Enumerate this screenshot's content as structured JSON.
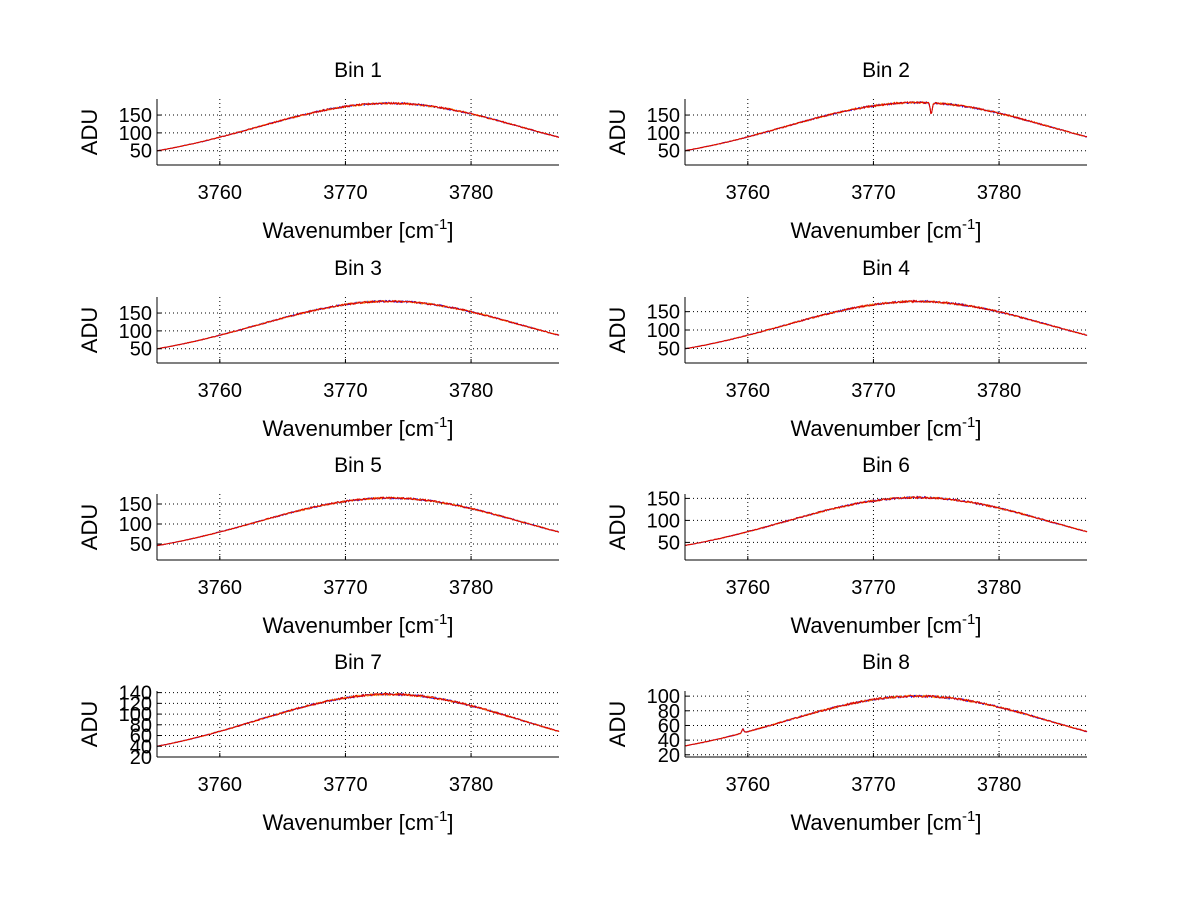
{
  "chart_data": [
    {
      "type": "line",
      "title": "Bin 1",
      "xlabel": "Wavenumber [cm",
      "xlabel_sup": "-1",
      "xlabel_end": "]",
      "ylabel": "ADU",
      "xlim": [
        3755,
        3787
      ],
      "ylim": [
        10,
        195
      ],
      "xticks": [
        3760,
        3770,
        3780
      ],
      "yticks": [
        50,
        100,
        150
      ],
      "peak": 183,
      "grid": true,
      "dips": []
    },
    {
      "type": "line",
      "title": "Bin 2",
      "xlabel": "Wavenumber [cm",
      "xlabel_sup": "-1",
      "xlabel_end": "]",
      "ylabel": "ADU",
      "xlim": [
        3755,
        3787
      ],
      "ylim": [
        10,
        195
      ],
      "xticks": [
        3760,
        3770,
        3780
      ],
      "yticks": [
        50,
        100,
        150
      ],
      "peak": 185,
      "grid": true,
      "dips": [
        [
          3774.6,
          -30
        ]
      ]
    },
    {
      "type": "line",
      "title": "Bin 3",
      "xlabel": "Wavenumber [cm",
      "xlabel_sup": "-1",
      "xlabel_end": "]",
      "ylabel": "ADU",
      "xlim": [
        3755,
        3787
      ],
      "ylim": [
        10,
        195
      ],
      "xticks": [
        3760,
        3770,
        3780
      ],
      "yticks": [
        50,
        100,
        150
      ],
      "peak": 183,
      "grid": true,
      "dips": []
    },
    {
      "type": "line",
      "title": "Bin 4",
      "xlabel": "Wavenumber [cm",
      "xlabel_sup": "-1",
      "xlabel_end": "]",
      "ylabel": "ADU",
      "xlim": [
        3755,
        3787
      ],
      "ylim": [
        10,
        190
      ],
      "xticks": [
        3760,
        3770,
        3780
      ],
      "yticks": [
        50,
        100,
        150
      ],
      "peak": 178,
      "grid": true,
      "dips": []
    },
    {
      "type": "line",
      "title": "Bin 5",
      "xlabel": "Wavenumber [cm",
      "xlabel_sup": "-1",
      "xlabel_end": "]",
      "ylabel": "ADU",
      "xlim": [
        3755,
        3787
      ],
      "ylim": [
        10,
        175
      ],
      "xticks": [
        3760,
        3770,
        3780
      ],
      "yticks": [
        50,
        100,
        150
      ],
      "peak": 165,
      "grid": true,
      "dips": []
    },
    {
      "type": "line",
      "title": "Bin 6",
      "xlabel": "Wavenumber [cm",
      "xlabel_sup": "-1",
      "xlabel_end": "]",
      "ylabel": "ADU",
      "xlim": [
        3755,
        3787
      ],
      "ylim": [
        10,
        160
      ],
      "xticks": [
        3760,
        3770,
        3780
      ],
      "yticks": [
        50,
        100,
        150
      ],
      "peak": 152,
      "grid": true,
      "dips": []
    },
    {
      "type": "line",
      "title": "Bin 7",
      "xlabel": "Wavenumber [cm",
      "xlabel_sup": "-1",
      "xlabel_end": "]",
      "ylabel": "ADU",
      "xlim": [
        3755,
        3787
      ],
      "ylim": [
        20,
        143
      ],
      "xticks": [
        3760,
        3770,
        3780
      ],
      "yticks": [
        20,
        40,
        60,
        80,
        100,
        120,
        140
      ],
      "peak": 137,
      "grid": true,
      "dips": []
    },
    {
      "type": "line",
      "title": "Bin 8",
      "xlabel": "Wavenumber [cm",
      "xlabel_sup": "-1",
      "xlabel_end": "]",
      "ylabel": "ADU",
      "xlim": [
        3755,
        3787
      ],
      "ylim": [
        17,
        107
      ],
      "xticks": [
        3760,
        3770,
        3780
      ],
      "yticks": [
        20,
        40,
        60,
        80,
        100
      ],
      "peak": 100,
      "grid": true,
      "dips": [
        [
          3759.6,
          5
        ]
      ]
    }
  ],
  "series_colors": [
    "#0000ff",
    "#ff8800",
    "#dd0000"
  ]
}
